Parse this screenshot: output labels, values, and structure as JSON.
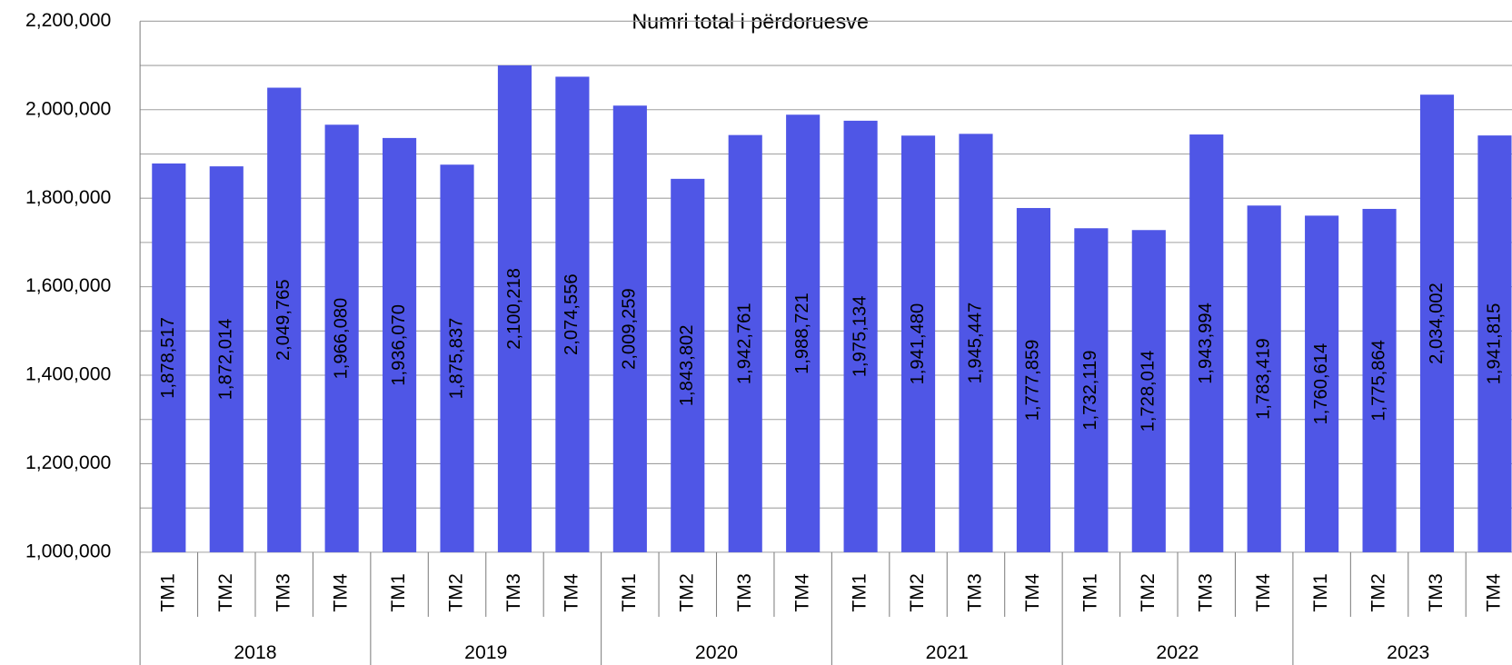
{
  "chart_data": {
    "type": "bar",
    "title": "Numri total i përdoruesve",
    "categories": [
      "TM1",
      "TM2",
      "TM3",
      "TM4",
      "TM1",
      "TM2",
      "TM3",
      "TM4",
      "TM1",
      "TM2",
      "TM3",
      "TM4",
      "TM1",
      "TM2",
      "TM3",
      "TM4",
      "TM1",
      "TM2",
      "TM3",
      "TM4",
      "TM1",
      "TM2",
      "TM3",
      "TM4"
    ],
    "years": [
      "2018",
      "2019",
      "2020",
      "2021",
      "2022",
      "2023"
    ],
    "values": [
      1878517,
      1872014,
      2049765,
      1966080,
      1936070,
      1875837,
      2100218,
      2074556,
      2009259,
      1843802,
      1942761,
      1988721,
      1975134,
      1941480,
      1945447,
      1777859,
      1732119,
      1728014,
      1943994,
      1783419,
      1760614,
      1775864,
      2034002,
      1941815
    ],
    "value_labels": [
      "1,878,517",
      "1,872,014",
      "2,049,765",
      "1,966,080",
      "1,936,070",
      "1,875,837",
      "2,100,218",
      "2,074,556",
      "2,009,259",
      "1,843,802",
      "1,942,761",
      "1,988,721",
      "1,975,134",
      "1,941,480",
      "1,945,447",
      "1,777,859",
      "1,732,119",
      "1,728,014",
      "1,943,994",
      "1,783,419",
      "1,760,614",
      "1,775,864",
      "2,034,002",
      "1,941,815"
    ],
    "color": "#4f56e6",
    "ylim": [
      1000000,
      2200000
    ],
    "yticks": [
      {
        "value": 1000000,
        "label": "1,000,000"
      },
      {
        "value": 1200000,
        "label": "1,200,000"
      },
      {
        "value": 1400000,
        "label": "1,400,000"
      },
      {
        "value": 1600000,
        "label": "1,600,000"
      },
      {
        "value": 1800000,
        "label": "1,800,000"
      },
      {
        "value": 2000000,
        "label": "2,000,000"
      },
      {
        "value": 2200000,
        "label": "2,200,000"
      }
    ],
    "minor_yticks": [
      1100000,
      1300000,
      1500000,
      1700000,
      1900000,
      2100000
    ],
    "grid": true
  }
}
